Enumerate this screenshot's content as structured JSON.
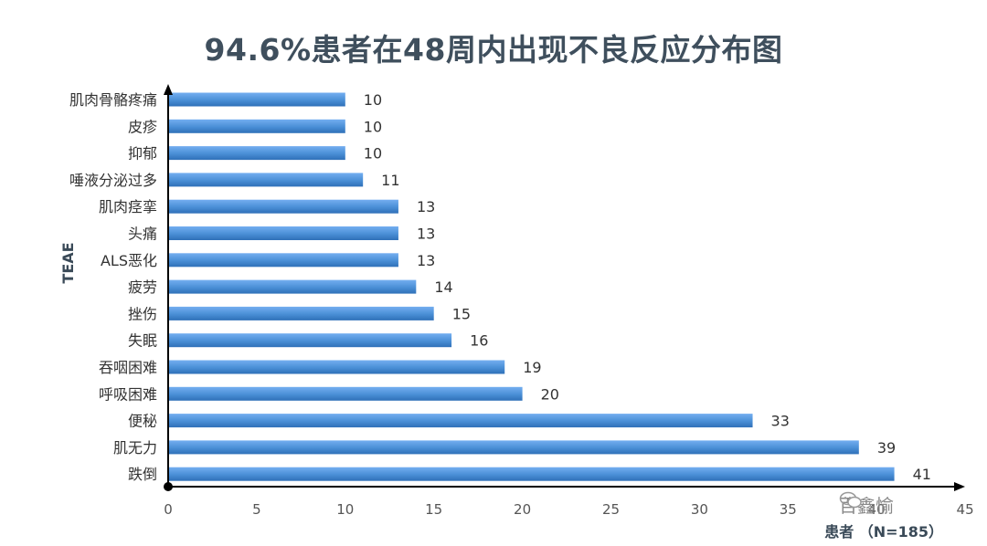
{
  "title": "94.6%患者在48周内出现不良反应分布图",
  "watermark": "百鑫愉",
  "chart_data": {
    "type": "bar",
    "orientation": "horizontal",
    "categories": [
      "肌肉骨骼疼痛",
      "皮疹",
      "抑郁",
      "唾液分泌过多",
      "肌肉痉挛",
      "头痛",
      "ALS恶化",
      "疲劳",
      "挫伤",
      "失眠",
      "吞咽困难",
      "呼吸困难",
      "便秘",
      "肌无力",
      "跌倒"
    ],
    "values": [
      10,
      10,
      10,
      11,
      13,
      13,
      13,
      14,
      15,
      16,
      19,
      20,
      33,
      39,
      41
    ],
    "xlabel": "患者 （N=185）",
    "ylabel": "TEAE",
    "xlim": [
      0,
      45
    ],
    "xticks": [
      0,
      5,
      10,
      15,
      20,
      25,
      30,
      35,
      40,
      45
    ],
    "bar_color": "#4a8fd6",
    "grid": false
  }
}
